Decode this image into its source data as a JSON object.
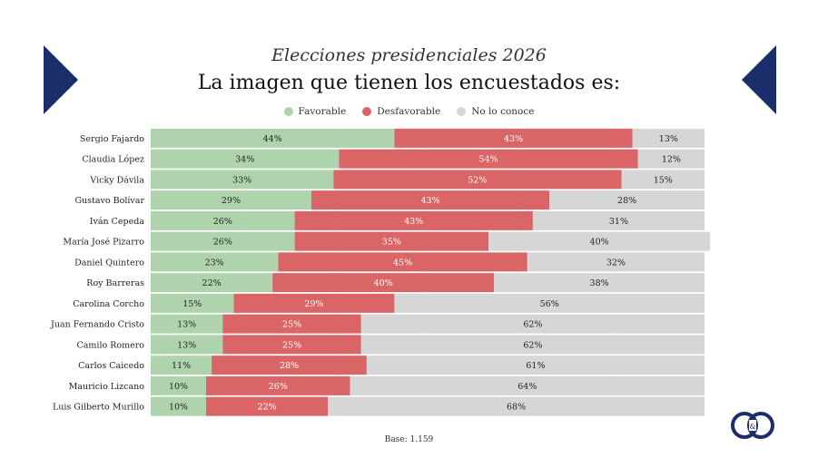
{
  "header": {
    "subtitle": "Elecciones presidenciales 2026",
    "title": "La imagen que tienen los encuestados es:"
  },
  "colors": {
    "favorable": "#afd4ad",
    "desfavorable": "#d96567",
    "no_conoce": "#d6d6d6",
    "brand": "#1c2d6b"
  },
  "legend": {
    "favorable": "Favorable",
    "desfavorable": "Desfavorable",
    "no_conoce": "No lo conoce"
  },
  "footer": {
    "base": "Base: 1.159"
  },
  "chart_data": {
    "type": "bar",
    "orientation": "horizontal",
    "stacked": true,
    "title": "La imagen que tienen los encuestados es:",
    "subtitle": "Elecciones presidenciales 2026",
    "categories": [
      "Sergio Fajardo",
      "Claudia López",
      "Vicky Dávila",
      "Gustavo Bolívar",
      "Iván Cepeda",
      "María José Pizarro",
      "Daniel Quintero",
      "Roy Barreras",
      "Carolina Corcho",
      "Juan Fernando Cristo",
      "Camilo Romero",
      "Carlos Caicedo",
      "Mauricio Lizcano",
      "Luis Gilberto Murillo"
    ],
    "series": [
      {
        "name": "Favorable",
        "values": [
          44,
          34,
          33,
          29,
          26,
          26,
          23,
          22,
          15,
          13,
          13,
          11,
          10,
          10
        ]
      },
      {
        "name": "Desfavorable",
        "values": [
          43,
          54,
          52,
          43,
          43,
          35,
          45,
          40,
          29,
          25,
          25,
          28,
          26,
          22
        ]
      },
      {
        "name": "No lo conoce",
        "values": [
          13,
          12,
          15,
          28,
          31,
          40,
          32,
          38,
          56,
          62,
          62,
          61,
          64,
          68
        ]
      }
    ],
    "value_suffix": "%",
    "xlim": [
      0,
      100
    ],
    "legend_position": "top-center",
    "note": "Base: 1.159"
  }
}
